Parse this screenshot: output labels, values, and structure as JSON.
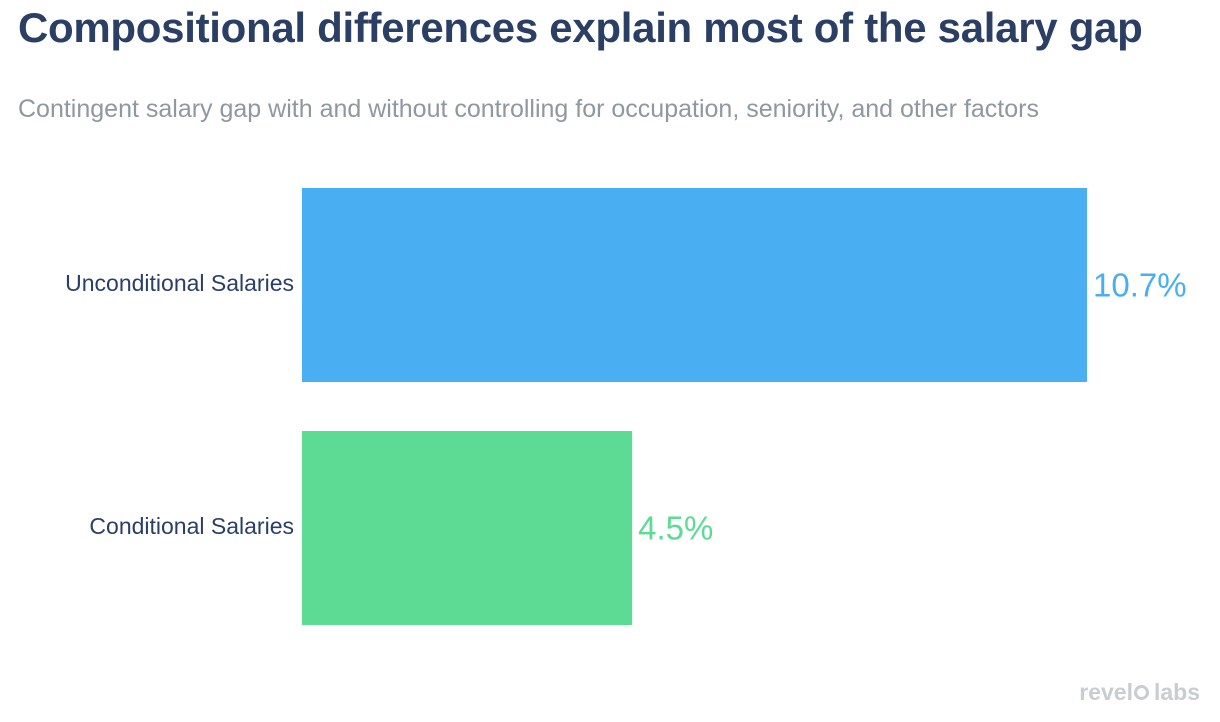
{
  "chart_data": {
    "type": "bar",
    "orientation": "horizontal",
    "title": "Compositional differences explain most of the salary gap",
    "subtitle": "Contingent salary gap with and without controlling for occupation, seniority, and other factors",
    "categories": [
      "Unconditional Salaries",
      "Conditional Salaries"
    ],
    "values": [
      10.7,
      4.5
    ],
    "value_labels": [
      "10.7%",
      "4.5%"
    ],
    "colors": [
      "#4aaef3",
      "#5ddb95"
    ],
    "xlim": [
      0,
      10.7
    ],
    "unit": "%"
  },
  "branding": {
    "logo_text_left": "revel",
    "logo_text_right": "labs"
  }
}
